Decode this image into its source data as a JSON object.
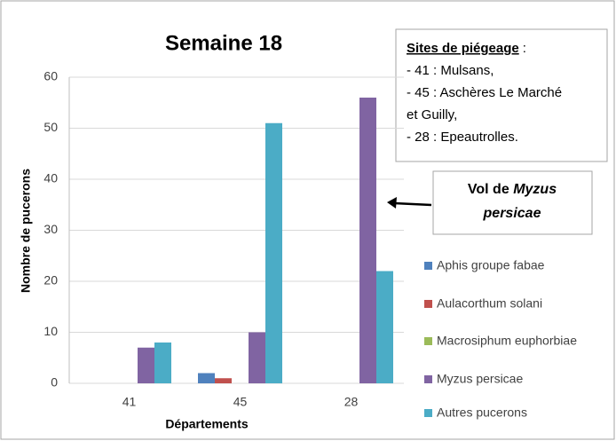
{
  "chart_data": {
    "type": "bar",
    "title": "Semaine 18",
    "xlabel": "Départements",
    "ylabel": "Nombre de pucerons",
    "categories": [
      "41",
      "45",
      "28"
    ],
    "series": [
      {
        "name": "Aphis groupe fabae",
        "color": "#4f81bd",
        "values": [
          0,
          2,
          0
        ]
      },
      {
        "name": "Aulacorthum solani",
        "color": "#c0504d",
        "values": [
          0,
          1,
          0
        ]
      },
      {
        "name": "Macrosiphum euphorbiae",
        "color": "#9bbb59",
        "values": [
          0,
          0,
          0
        ]
      },
      {
        "name": "Myzus persicae",
        "color": "#8064a2",
        "values": [
          7,
          10,
          56
        ]
      },
      {
        "name": "Autres pucerons",
        "color": "#4bacc6",
        "values": [
          8,
          51,
          22
        ]
      }
    ],
    "ylim": [
      0,
      60
    ],
    "yticks": [
      0,
      10,
      20,
      30,
      40,
      50,
      60
    ],
    "grid": true,
    "legend": "right",
    "annotations": {
      "sites": {
        "title": "Sites de piégeage",
        "title_suffix": ":",
        "lines": [
          "- 41 : Mulsans,",
          "- 45 : Aschères Le Marché",
          "et Guilly,",
          "- 28 : Epeautrolles."
        ]
      },
      "callout": {
        "text": "Vol de",
        "italic": [
          "Myzus",
          "persicae"
        ]
      }
    }
  }
}
